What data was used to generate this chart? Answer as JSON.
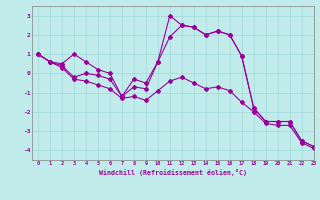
{
  "xlabel": "Windchill (Refroidissement éolien,°C)",
  "background_color": "#c2ecec",
  "line_color": "#990099",
  "grid_color": "#a0d8d8",
  "xlim": [
    -0.5,
    23
  ],
  "ylim": [
    -4.5,
    3.5
  ],
  "xticks": [
    0,
    1,
    2,
    3,
    4,
    5,
    6,
    7,
    8,
    9,
    10,
    11,
    12,
    13,
    14,
    15,
    16,
    17,
    18,
    19,
    20,
    21,
    22,
    23
  ],
  "yticks": [
    -4,
    -3,
    -2,
    -1,
    0,
    1,
    2,
    3
  ],
  "series1_x": [
    0,
    1,
    2,
    3,
    4,
    5,
    6,
    7,
    8,
    9,
    10,
    11,
    12,
    13,
    14,
    15,
    16,
    17,
    18,
    19,
    20,
    21,
    22,
    23
  ],
  "series1_y": [
    1.0,
    0.6,
    0.5,
    1.0,
    0.6,
    0.2,
    0.0,
    -1.2,
    -0.3,
    -0.5,
    0.6,
    3.0,
    2.5,
    2.4,
    2.0,
    2.2,
    2.0,
    0.9,
    -1.8,
    -2.5,
    -2.5,
    -2.5,
    -3.5,
    -3.8
  ],
  "series2_x": [
    0,
    1,
    2,
    3,
    4,
    5,
    6,
    7,
    8,
    9,
    10,
    11,
    12,
    13,
    14,
    15,
    16,
    17,
    18,
    19,
    20,
    21,
    22,
    23
  ],
  "series2_y": [
    1.0,
    0.6,
    0.4,
    -0.2,
    0.0,
    -0.1,
    -0.3,
    -1.2,
    -0.7,
    -0.8,
    0.6,
    1.9,
    2.5,
    2.4,
    2.0,
    2.2,
    2.0,
    0.9,
    -1.8,
    -2.5,
    -2.5,
    -2.5,
    -3.5,
    -3.8
  ],
  "series3_x": [
    0,
    1,
    2,
    3,
    4,
    5,
    6,
    7,
    8,
    9,
    10,
    11,
    12,
    13,
    14,
    15,
    16,
    17,
    18,
    19,
    20,
    21,
    22,
    23
  ],
  "series3_y": [
    1.0,
    0.6,
    0.3,
    -0.3,
    -0.4,
    -0.6,
    -0.8,
    -1.3,
    -1.2,
    -1.4,
    -0.9,
    -0.4,
    -0.2,
    -0.5,
    -0.8,
    -0.7,
    -0.9,
    -1.5,
    -2.0,
    -2.6,
    -2.7,
    -2.7,
    -3.6,
    -3.9
  ]
}
